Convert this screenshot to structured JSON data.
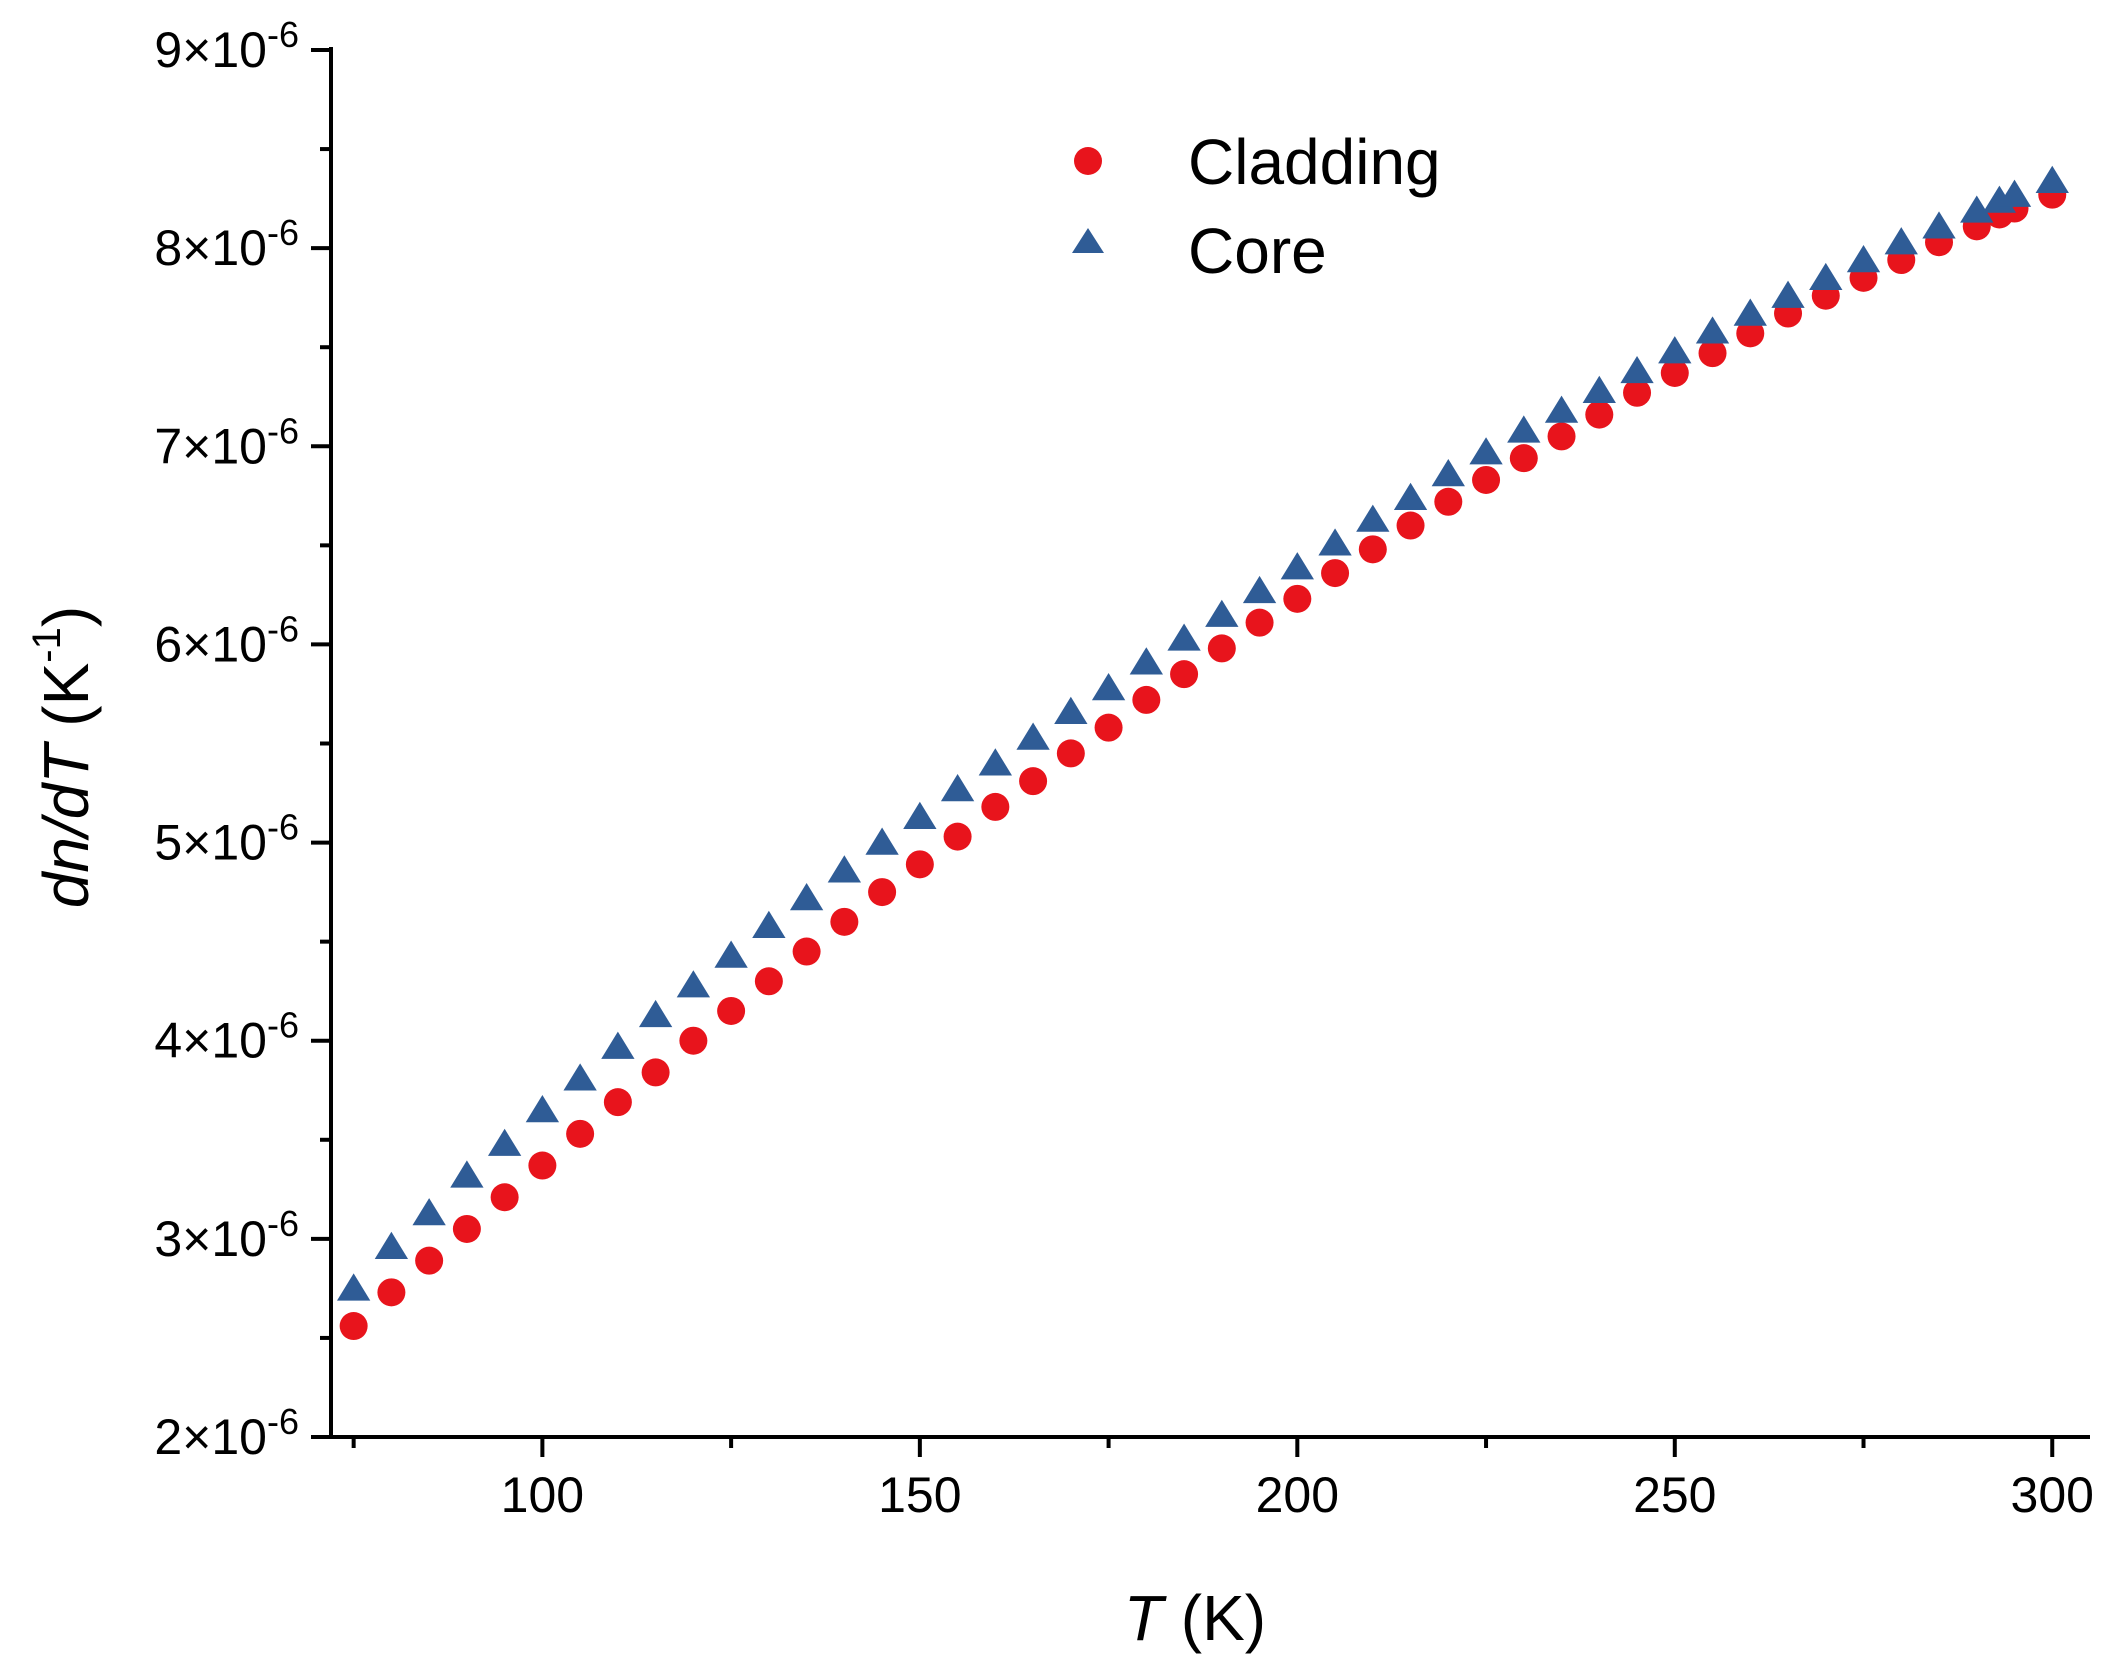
{
  "chart_data": {
    "type": "scatter",
    "title": "",
    "xlabel": {
      "var": "T",
      "unit": " (K)"
    },
    "ylabel": {
      "var": "dn/dT",
      "unit_prefix": " (K",
      "unit_sup": "-1",
      "unit_suffix": ")"
    },
    "xlim": [
      72,
      305
    ],
    "ylim": [
      2e-06,
      9e-06
    ],
    "x_ticks": [
      100,
      150,
      200,
      250,
      300
    ],
    "x_tick_labels": [
      "100",
      "150",
      "200",
      "250",
      "300"
    ],
    "y_ticks": [
      2e-06,
      3e-06,
      4e-06,
      5e-06,
      6e-06,
      7e-06,
      8e-06,
      9e-06
    ],
    "y_tick_labels": [
      {
        "mantissa": "2",
        "times": "×10",
        "exp": "-6"
      },
      {
        "mantissa": "3",
        "times": "×10",
        "exp": "-6"
      },
      {
        "mantissa": "4",
        "times": "×10",
        "exp": "-6"
      },
      {
        "mantissa": "5",
        "times": "×10",
        "exp": "-6"
      },
      {
        "mantissa": "6",
        "times": "×10",
        "exp": "-6"
      },
      {
        "mantissa": "7",
        "times": "×10",
        "exp": "-6"
      },
      {
        "mantissa": "8",
        "times": "×10",
        "exp": "-6"
      },
      {
        "mantissa": "9",
        "times": "×10",
        "exp": "-6"
      }
    ],
    "grid": false,
    "legend_position": "top-center",
    "series": [
      {
        "name": "Cladding",
        "marker": "circle",
        "color": "#e8141c",
        "x": [
          75,
          80,
          85,
          90,
          95,
          100,
          105,
          110,
          115,
          120,
          125,
          130,
          135,
          140,
          145,
          150,
          155,
          160,
          165,
          170,
          175,
          180,
          185,
          190,
          195,
          200,
          205,
          210,
          215,
          220,
          225,
          230,
          235,
          240,
          245,
          250,
          255,
          260,
          265,
          270,
          275,
          280,
          285,
          290,
          293,
          295,
          300
        ],
        "y": [
          2.56e-06,
          2.73e-06,
          2.89e-06,
          3.05e-06,
          3.21e-06,
          3.37e-06,
          3.53e-06,
          3.69e-06,
          3.84e-06,
          4e-06,
          4.15e-06,
          4.3e-06,
          4.45e-06,
          4.6e-06,
          4.75e-06,
          4.89e-06,
          5.03e-06,
          5.18e-06,
          5.31e-06,
          5.45e-06,
          5.58e-06,
          5.72e-06,
          5.85e-06,
          5.98e-06,
          6.11e-06,
          6.23e-06,
          6.36e-06,
          6.48e-06,
          6.6e-06,
          6.72e-06,
          6.83e-06,
          6.94e-06,
          7.05e-06,
          7.16e-06,
          7.27e-06,
          7.37e-06,
          7.47e-06,
          7.57e-06,
          7.67e-06,
          7.76e-06,
          7.85e-06,
          7.94e-06,
          8.03e-06,
          8.11e-06,
          8.17e-06,
          8.2e-06,
          8.27e-06
        ]
      },
      {
        "name": "Core",
        "marker": "triangle",
        "color": "#2f5c96",
        "x": [
          75,
          80,
          85,
          90,
          95,
          100,
          105,
          110,
          115,
          120,
          125,
          130,
          135,
          140,
          145,
          150,
          155,
          160,
          165,
          170,
          175,
          180,
          185,
          190,
          195,
          200,
          205,
          210,
          215,
          220,
          225,
          230,
          235,
          240,
          245,
          250,
          255,
          260,
          265,
          270,
          275,
          280,
          285,
          290,
          293,
          295,
          300
        ],
        "y": [
          2.74e-06,
          2.95e-06,
          3.12e-06,
          3.31e-06,
          3.47e-06,
          3.64e-06,
          3.8e-06,
          3.96e-06,
          4.12e-06,
          4.27e-06,
          4.42e-06,
          4.57e-06,
          4.71e-06,
          4.85e-06,
          4.99e-06,
          5.12e-06,
          5.26e-06,
          5.39e-06,
          5.52e-06,
          5.65e-06,
          5.77e-06,
          5.9e-06,
          6.02e-06,
          6.14e-06,
          6.26e-06,
          6.38e-06,
          6.5e-06,
          6.62e-06,
          6.73e-06,
          6.85e-06,
          6.96e-06,
          7.07e-06,
          7.17e-06,
          7.27e-06,
          7.37e-06,
          7.47e-06,
          7.57e-06,
          7.66e-06,
          7.75e-06,
          7.84e-06,
          7.93e-06,
          8.02e-06,
          8.1e-06,
          8.18e-06,
          8.23e-06,
          8.26e-06,
          8.33e-06
        ]
      }
    ]
  }
}
